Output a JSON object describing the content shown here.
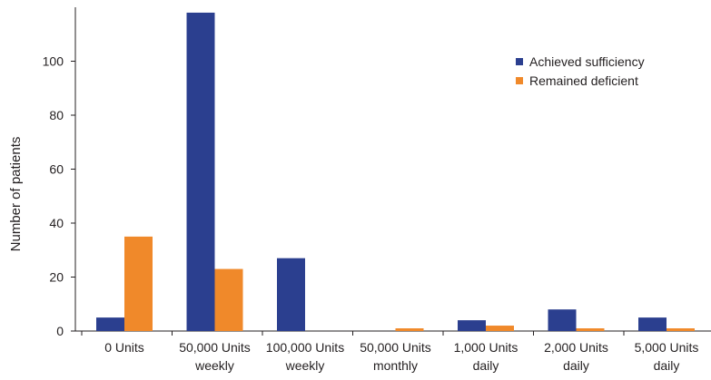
{
  "chart_data": {
    "type": "bar",
    "title": "",
    "xlabel": "",
    "ylabel": "Number of patients",
    "ylim": [
      0,
      120
    ],
    "yticks": [
      0,
      20,
      40,
      60,
      80,
      100
    ],
    "grid": false,
    "legend_position": "top-right",
    "categories": [
      [
        "0 Units"
      ],
      [
        "50,000 Units",
        "weekly"
      ],
      [
        "100,000 Units",
        "weekly"
      ],
      [
        "50,000 Units",
        "monthly"
      ],
      [
        "1,000 Units",
        "daily"
      ],
      [
        "2,000 Units",
        "daily"
      ],
      [
        "5,000 Units",
        "daily"
      ]
    ],
    "series": [
      {
        "name": "Achieved sufficiency",
        "color": "#2b3f8f",
        "values": [
          5,
          118,
          27,
          0,
          4,
          8,
          5
        ]
      },
      {
        "name": "Remained deficient",
        "color": "#f0892a",
        "values": [
          35,
          23,
          0,
          1,
          2,
          1,
          1
        ]
      }
    ]
  }
}
